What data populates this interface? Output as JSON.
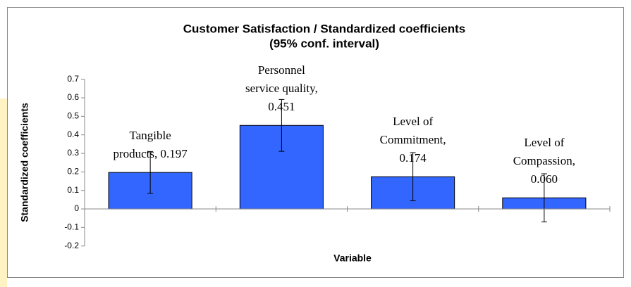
{
  "chart_data": {
    "type": "bar",
    "title": [
      "Customer Satisfaction / Standardized coefficients",
      "(95% conf. interval)"
    ],
    "x_label": "Variable",
    "y_label": "Standardized coefficients",
    "values": [
      0.197,
      0.451,
      0.174,
      0.06
    ],
    "value_labels": [
      [
        "Tangible",
        "products, 0.197"
      ],
      [
        "Personnel",
        "service quality,",
        "0.451"
      ],
      [
        "Level of",
        "Commitment,",
        "0.174"
      ],
      [
        "Level of",
        "Compassion,",
        "0.060"
      ]
    ],
    "errors": [
      0.113,
      0.14,
      0.13,
      0.13
    ],
    "color": "#3366ff",
    "ylim": [
      -0.2,
      0.7
    ],
    "yticks": [
      -0.2,
      -0.1,
      0,
      0.1,
      0.2,
      0.3,
      0.4,
      0.5,
      0.6,
      0.7
    ]
  }
}
